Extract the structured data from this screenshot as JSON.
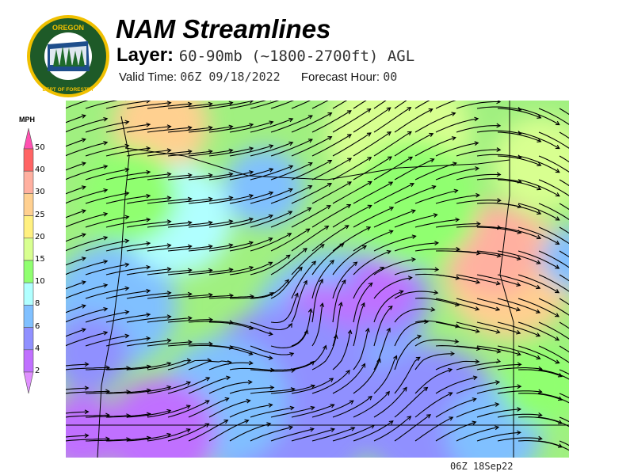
{
  "header": {
    "title": "NAM Streamlines",
    "layer_label": "Layer:",
    "layer_value": "60-90mb (~1800-2700ft) AGL",
    "valid_label": "Valid Time:",
    "valid_value": "06Z 09/18/2022",
    "forecast_label": "Forecast Hour:",
    "forecast_value": "00"
  },
  "logo": {
    "text": "OREGON DEPARTMENT OF FORESTRY",
    "colors": {
      "ring": "#f0c000",
      "field": "#1e5a28"
    }
  },
  "legend": {
    "unit": "MPH",
    "labels": [
      "50",
      "40",
      "30",
      "25",
      "20",
      "15",
      "10",
      "8",
      "6",
      "4",
      "2"
    ],
    "colors": [
      "#ff50b0",
      "#ff6464",
      "#ffb0a0",
      "#ffd090",
      "#fff080",
      "#d8ff90",
      "#90ff70",
      "#b0ffff",
      "#80c0ff",
      "#9090ff",
      "#c070ff",
      "#e090ff"
    ]
  },
  "map": {
    "timestamp": "06Z 18Sep22",
    "streamline_color": "#000000",
    "border_color": "#000000"
  }
}
